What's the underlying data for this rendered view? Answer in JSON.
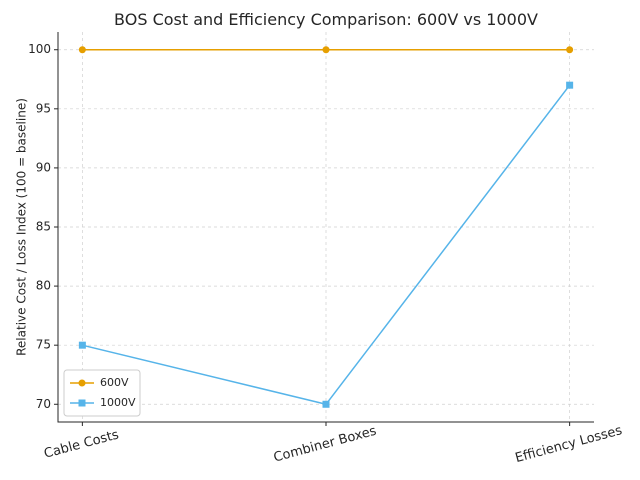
{
  "chart_data": {
    "type": "line",
    "title": "BOS Cost and Efficiency Comparison: 600V vs 1000V",
    "y_label": "Relative Cost / Loss Index (100 = baseline)",
    "categories": [
      "Cable Costs",
      "Combiner Boxes",
      "Efficiency Losses"
    ],
    "series": [
      {
        "name": "600V",
        "color": "#e69f00",
        "marker": "circle",
        "values": [
          100,
          100,
          100
        ]
      },
      {
        "name": "1000V",
        "color": "#56b4e9",
        "marker": "square",
        "values": [
          75,
          70,
          97
        ]
      }
    ],
    "ylim": [
      68.5,
      101.5
    ],
    "yticks": [
      70,
      75,
      80,
      85,
      90,
      95,
      100
    ],
    "grid": true,
    "legend": "lower left"
  }
}
